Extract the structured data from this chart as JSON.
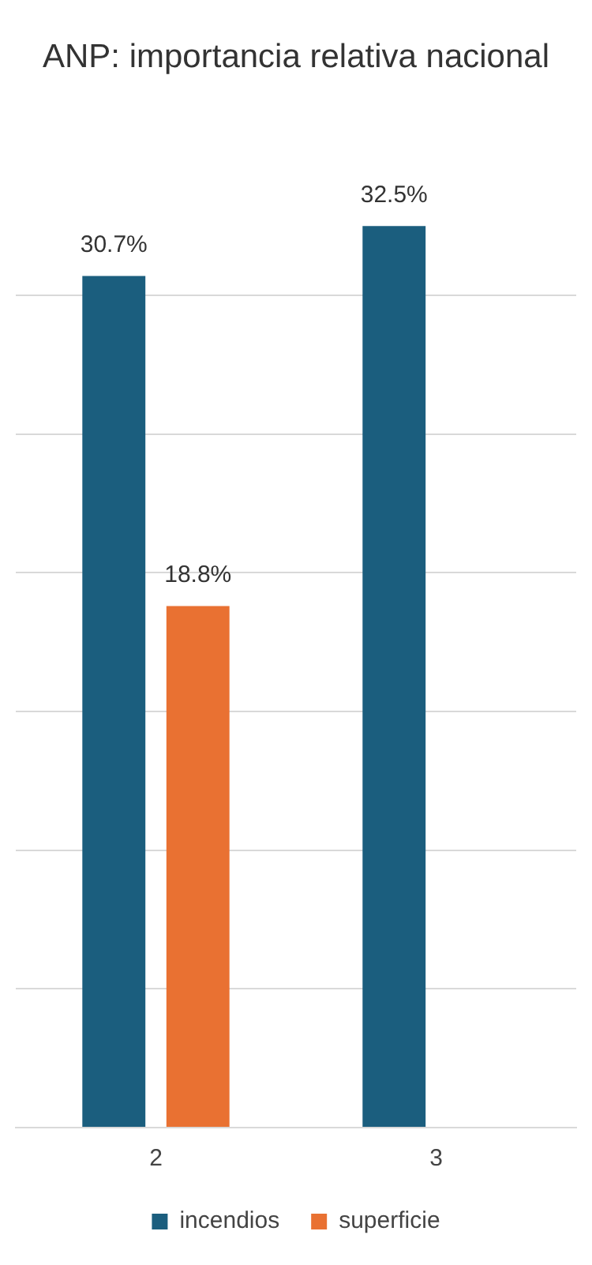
{
  "chart_data": {
    "type": "bar",
    "title": "ANP: importancia relativa nacional",
    "categories": [
      "2",
      "3"
    ],
    "series": [
      {
        "name": "incendios",
        "color": "#1b5e7e",
        "values": [
          30.7,
          32.5
        ],
        "value_labels": [
          "30.7%",
          "32.5%"
        ]
      },
      {
        "name": "superficie",
        "color": "#e97132",
        "values": [
          18.8,
          null
        ],
        "value_labels": [
          "18.8%",
          null
        ]
      }
    ],
    "yticks": [
      {
        "value": 0,
        "label": null
      },
      {
        "value": 5,
        "label": null
      },
      {
        "value": 10,
        "label": null
      },
      {
        "value": 15,
        "label": null
      },
      {
        "value": 20,
        "label": null
      },
      {
        "value": 25,
        "label": null
      },
      {
        "value": 30,
        "label": null
      }
    ],
    "grid": "y",
    "tick_labels": "x",
    "legend": "bottom"
  }
}
